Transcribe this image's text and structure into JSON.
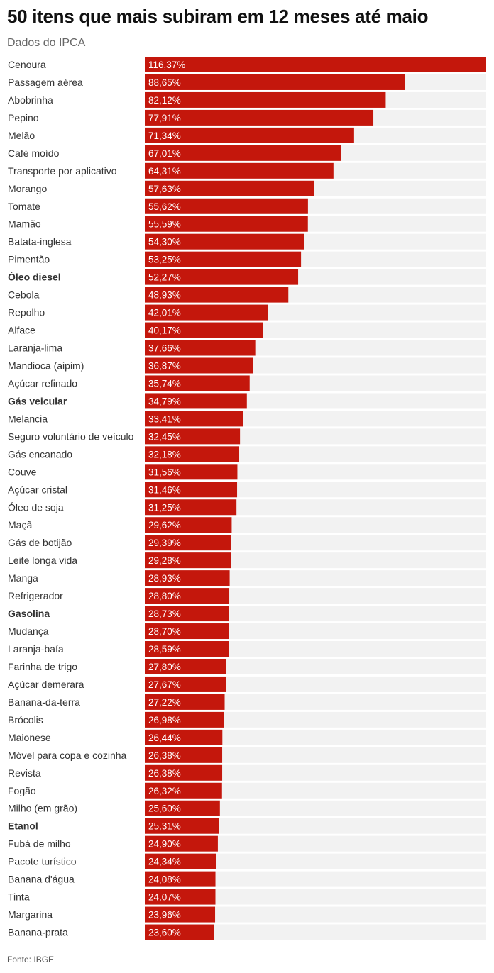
{
  "title": "50 itens que mais subiram em 12 meses até maio",
  "subtitle": "Dados do IPCA",
  "source": "Fonte: IBGE",
  "colors": {
    "bar": "#c4170c",
    "track": "#f2f2f2",
    "label": "#333333",
    "value_text": "#ffffff"
  },
  "chart_data": {
    "type": "bar",
    "orientation": "horizontal",
    "value_suffix": "%",
    "xlim": [
      0,
      116.37
    ],
    "grid": false,
    "categories": [
      "Cenoura",
      "Passagem aérea",
      "Abobrinha",
      "Pepino",
      "Melão",
      "Café moído",
      "Transporte por aplicativo",
      "Morango",
      "Tomate",
      "Mamão",
      "Batata-inglesa",
      "Pimentão",
      "Óleo diesel",
      "Cebola",
      "Repolho",
      "Alface",
      "Laranja-lima",
      "Mandioca (aipim)",
      "Açúcar refinado",
      "Gás veicular",
      "Melancia",
      "Seguro voluntário de veículo",
      "Gás encanado",
      "Couve",
      "Açúcar cristal",
      "Óleo de soja",
      "Maçã",
      "Gás de botijão",
      "Leite longa vida",
      "Manga",
      "Refrigerador",
      "Gasolina",
      "Mudança",
      "Laranja-baía",
      "Farinha de trigo",
      "Açúcar demerara",
      "Banana-da-terra",
      "Brócolis",
      "Maionese",
      "Móvel para copa e cozinha",
      "Revista",
      "Fogão",
      "Milho (em grão)",
      "Etanol",
      "Fubá de milho",
      "Pacote turístico",
      "Banana d'água",
      "Tinta",
      "Margarina",
      "Banana-prata"
    ],
    "values": [
      116.37,
      88.65,
      82.12,
      77.91,
      71.34,
      67.01,
      64.31,
      57.63,
      55.62,
      55.59,
      54.3,
      53.25,
      52.27,
      48.93,
      42.01,
      40.17,
      37.66,
      36.87,
      35.74,
      34.79,
      33.41,
      32.45,
      32.18,
      31.56,
      31.46,
      31.25,
      29.62,
      29.39,
      29.28,
      28.93,
      28.8,
      28.73,
      28.7,
      28.59,
      27.8,
      27.67,
      27.22,
      26.98,
      26.44,
      26.38,
      26.38,
      26.32,
      25.6,
      25.31,
      24.9,
      24.34,
      24.08,
      24.07,
      23.96,
      23.6
    ],
    "value_labels": [
      "116,37%",
      "88,65%",
      "82,12%",
      "77,91%",
      "71,34%",
      "67,01%",
      "64,31%",
      "57,63%",
      "55,62%",
      "55,59%",
      "54,30%",
      "53,25%",
      "52,27%",
      "48,93%",
      "42,01%",
      "40,17%",
      "37,66%",
      "36,87%",
      "35,74%",
      "34,79%",
      "33,41%",
      "32,45%",
      "32,18%",
      "31,56%",
      "31,46%",
      "31,25%",
      "29,62%",
      "29,39%",
      "29,28%",
      "28,93%",
      "28,80%",
      "28,73%",
      "28,70%",
      "28,59%",
      "27,80%",
      "27,67%",
      "27,22%",
      "26,98%",
      "26,44%",
      "26,38%",
      "26,38%",
      "26,32%",
      "25,60%",
      "25,31%",
      "24,90%",
      "24,34%",
      "24,08%",
      "24,07%",
      "23,96%",
      "23,60%"
    ],
    "bold_categories": [
      "Óleo diesel",
      "Gás veicular",
      "Gasolina",
      "Etanol"
    ]
  }
}
